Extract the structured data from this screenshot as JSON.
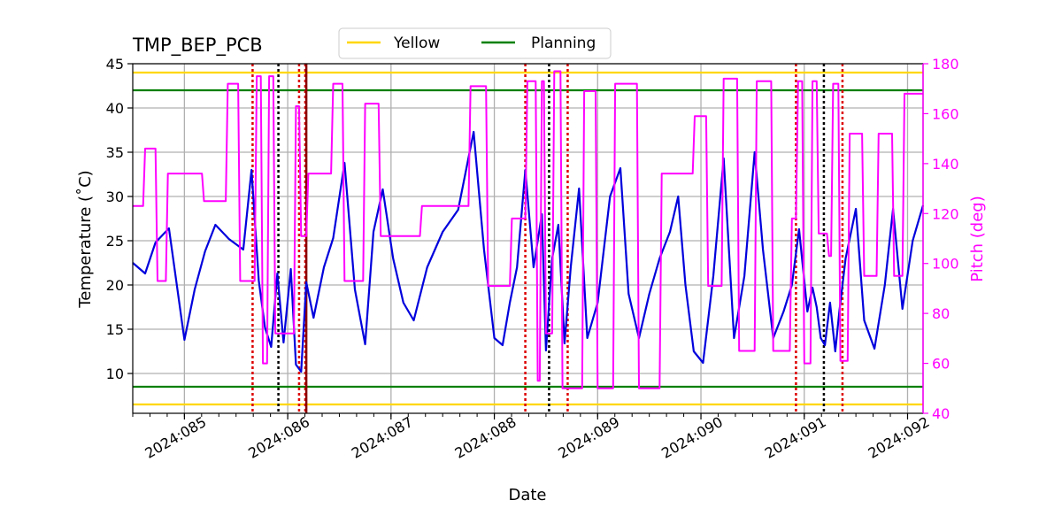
{
  "colors": {
    "temperature": "#0000dd",
    "pitch": "#ff00ff",
    "yellow": "#ffd700",
    "planning": "#008000",
    "red_marker": "#dd0000",
    "black_marker": "#000000",
    "dark_red_marker": "#8b0000",
    "grid": "#b0b0b0"
  },
  "chart_data": {
    "type": "line",
    "title": "TMP_BEP_PCB",
    "xlabel": "Date",
    "ylabel": "Temperature ($^\\circ$C)",
    "ylabel_display": "Temperature (˚C)",
    "y2label": "Pitch (deg)",
    "xlim": [
      84.5,
      92.15
    ],
    "ylim": [
      5.5,
      45
    ],
    "y2lim": [
      40,
      180
    ],
    "x_ticks": [
      85,
      86,
      87,
      88,
      89,
      90,
      91,
      92
    ],
    "x_tick_labels": [
      "2024:085",
      "2024:086",
      "2024:087",
      "2024:088",
      "2024:089",
      "2024:090",
      "2024:091",
      "2024:092"
    ],
    "y_ticks": [
      10,
      15,
      20,
      25,
      30,
      35,
      40,
      45
    ],
    "y_tick_labels": [
      "10",
      "15",
      "20",
      "25",
      "30",
      "35",
      "40",
      "45"
    ],
    "y2_ticks": [
      40,
      60,
      80,
      100,
      120,
      140,
      160,
      180
    ],
    "y2_tick_labels": [
      "40",
      "60",
      "80",
      "100",
      "120",
      "140",
      "160",
      "180"
    ],
    "grid": true,
    "legend": {
      "placement": "top-center, above plot",
      "entries": [
        {
          "label": "Yellow",
          "color_key": "yellow"
        },
        {
          "label": "Planning",
          "color_key": "planning"
        }
      ]
    },
    "limits": [
      {
        "name": "Yellow upper",
        "value": 44,
        "color_key": "yellow"
      },
      {
        "name": "Planning upper",
        "value": 42,
        "color_key": "planning"
      },
      {
        "name": "Planning lower",
        "value": 8.5,
        "color_key": "planning"
      },
      {
        "name": "Yellow lower",
        "value": 6.5,
        "color_key": "yellow"
      }
    ],
    "vertical_markers": [
      {
        "x": 85.66,
        "color_key": "red_marker"
      },
      {
        "x": 85.91,
        "color_key": "black_marker"
      },
      {
        "x": 86.11,
        "color_key": "red_marker"
      },
      {
        "x": 86.17,
        "color_key": "red_marker"
      },
      {
        "x": 86.18,
        "color_key": "dark_red_marker",
        "style": "solid"
      },
      {
        "x": 88.3,
        "color_key": "red_marker"
      },
      {
        "x": 88.53,
        "color_key": "black_marker"
      },
      {
        "x": 88.71,
        "color_key": "red_marker"
      },
      {
        "x": 90.92,
        "color_key": "red_marker"
      },
      {
        "x": 91.19,
        "color_key": "black_marker"
      },
      {
        "x": 91.37,
        "color_key": "red_marker"
      }
    ],
    "series": [
      {
        "name": "TMP_BEP_PCB",
        "axis": "left",
        "color_key": "temperature",
        "x": [
          84.5,
          84.62,
          84.72,
          84.85,
          85.0,
          85.1,
          85.2,
          85.3,
          85.43,
          85.57,
          85.65,
          85.72,
          85.78,
          85.84,
          85.9,
          85.96,
          86.03,
          86.08,
          86.13,
          86.18,
          86.25,
          86.35,
          86.44,
          86.55,
          86.65,
          86.75,
          86.83,
          86.92,
          87.02,
          87.12,
          87.22,
          87.35,
          87.5,
          87.65,
          87.8,
          87.9,
          88.0,
          88.08,
          88.15,
          88.22,
          88.3,
          88.38,
          88.46,
          88.5,
          88.56,
          88.62,
          88.68,
          88.74,
          88.82,
          88.9,
          89.0,
          89.12,
          89.22,
          89.3,
          89.4,
          89.5,
          89.6,
          89.7,
          89.78,
          89.85,
          89.93,
          90.02,
          90.12,
          90.22,
          90.32,
          90.42,
          90.52,
          90.6,
          90.7,
          90.8,
          90.88,
          90.95,
          91.03,
          91.08,
          91.12,
          91.16,
          91.2,
          91.25,
          91.3,
          91.34,
          91.4,
          91.5,
          91.58,
          91.68,
          91.78,
          91.86,
          91.95,
          92.05,
          92.15
        ],
        "y": [
          22.5,
          21.3,
          24.8,
          26.4,
          13.8,
          19.5,
          23.8,
          26.8,
          25.2,
          24.0,
          33.0,
          20.5,
          15.2,
          13.0,
          21.3,
          13.5,
          21.8,
          11.0,
          10.2,
          20.3,
          16.3,
          22.0,
          25.3,
          33.8,
          19.5,
          13.3,
          26.0,
          30.8,
          23.0,
          18.0,
          16.0,
          22.0,
          26.0,
          28.5,
          37.3,
          24.0,
          14.0,
          13.2,
          18.0,
          22.0,
          33.0,
          22.0,
          28.0,
          12.6,
          23.0,
          26.8,
          13.4,
          22.0,
          30.9,
          14.0,
          18.0,
          30.0,
          33.2,
          19.0,
          14.0,
          19.0,
          23.0,
          26.0,
          30.0,
          20.0,
          12.5,
          11.2,
          21.0,
          34.3,
          14.0,
          21.0,
          35.0,
          24.0,
          14.0,
          17.0,
          20.0,
          26.3,
          17.0,
          19.7,
          17.5,
          14.0,
          13.2,
          18.0,
          12.5,
          17.0,
          23.0,
          28.6,
          16.0,
          12.8,
          20.0,
          28.6,
          17.3,
          25.0,
          29.0
        ]
      },
      {
        "name": "Pitch",
        "axis": "right",
        "color_key": "pitch",
        "x": [
          84.5,
          84.6,
          84.62,
          84.72,
          84.74,
          84.82,
          84.84,
          84.92,
          84.94,
          85.17,
          85.19,
          85.4,
          85.42,
          85.52,
          85.54,
          85.68,
          85.7,
          85.74,
          85.76,
          85.8,
          85.82,
          85.86,
          85.88,
          85.96,
          85.98,
          86.06,
          86.08,
          86.11,
          86.13,
          86.18,
          86.2,
          86.42,
          86.44,
          86.53,
          86.55,
          86.73,
          86.75,
          86.88,
          86.9,
          87.28,
          87.3,
          87.75,
          87.77,
          87.92,
          87.94,
          88.15,
          88.17,
          88.3,
          88.32,
          88.4,
          88.42,
          88.44,
          88.46,
          88.48,
          88.5,
          88.56,
          88.58,
          88.64,
          88.66,
          88.7,
          88.72,
          88.85,
          88.87,
          88.98,
          89.0,
          89.15,
          89.17,
          89.38,
          89.4,
          89.6,
          89.62,
          89.92,
          89.94,
          90.05,
          90.07,
          90.2,
          90.22,
          90.35,
          90.37,
          90.52,
          90.54,
          90.68,
          90.7,
          90.86,
          90.88,
          90.92,
          90.94,
          90.98,
          91.0,
          91.06,
          91.08,
          91.12,
          91.14,
          91.22,
          91.24,
          91.26,
          91.28,
          91.33,
          91.35,
          91.42,
          91.44,
          91.56,
          91.58,
          91.7,
          91.72,
          91.85,
          91.87,
          91.95,
          91.97,
          92.15
        ],
        "y": [
          123,
          123,
          146,
          146,
          93,
          93,
          136,
          136,
          136,
          136,
          125,
          125,
          172,
          172,
          93,
          93,
          175,
          175,
          60,
          60,
          175,
          175,
          72,
          72,
          72,
          72,
          163,
          163,
          111,
          111,
          136,
          136,
          172,
          172,
          93,
          93,
          164,
          164,
          111,
          111,
          123,
          123,
          171,
          171,
          91,
          91,
          118,
          118,
          173,
          173,
          53,
          53,
          173,
          173,
          72,
          72,
          177,
          177,
          50,
          50,
          50,
          50,
          169,
          169,
          50,
          50,
          172,
          172,
          50,
          50,
          136,
          136,
          159,
          159,
          91,
          91,
          174,
          174,
          65,
          65,
          173,
          173,
          65,
          65,
          118,
          118,
          173,
          173,
          60,
          60,
          173,
          173,
          112,
          112,
          103,
          103,
          172,
          172,
          61,
          61,
          152,
          152,
          95,
          95,
          152,
          152,
          95,
          95,
          168,
          168
        ]
      }
    ]
  }
}
